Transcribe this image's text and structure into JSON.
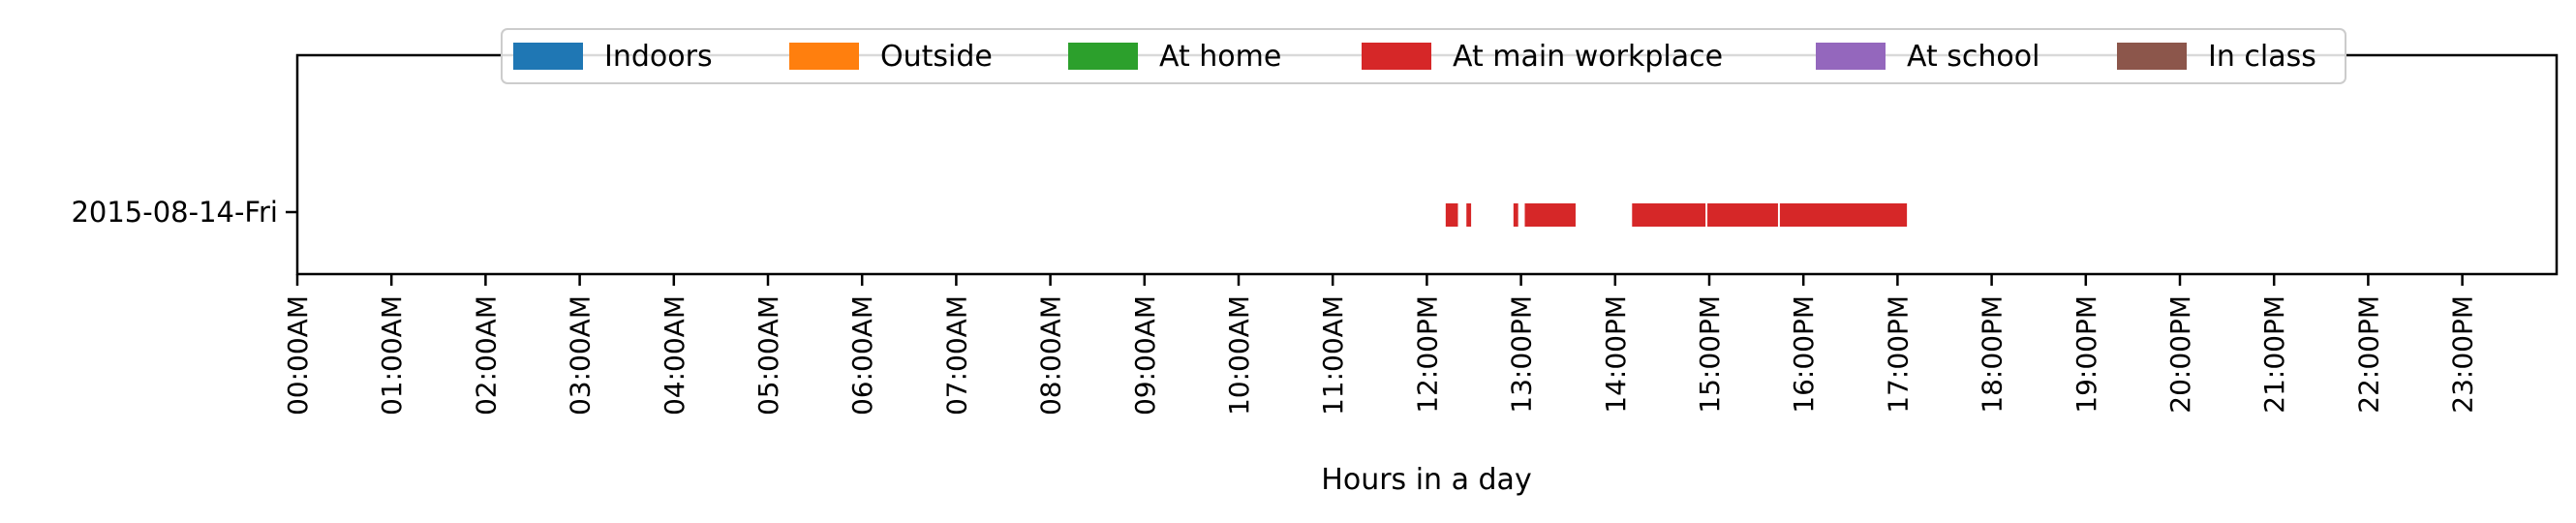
{
  "chart_data": {
    "type": "timeline",
    "title": "",
    "xlabel": "Hours in a day",
    "ylabel": "",
    "xlim": [
      0,
      24
    ],
    "y_categories": [
      "2015-08-14-Fri"
    ],
    "x_ticks": [
      "00:00AM",
      "01:00AM",
      "02:00AM",
      "03:00AM",
      "04:00AM",
      "05:00AM",
      "06:00AM",
      "07:00AM",
      "08:00AM",
      "09:00AM",
      "10:00AM",
      "11:00AM",
      "12:00PM",
      "13:00PM",
      "14:00PM",
      "15:00PM",
      "16:00PM",
      "17:00PM",
      "18:00PM",
      "19:00PM",
      "20:00PM",
      "21:00PM",
      "22:00PM",
      "23:00PM"
    ],
    "grid": false,
    "legend_position": "top-center",
    "legend": [
      {
        "name": "Indoors",
        "color": "#1f77b4"
      },
      {
        "name": "Outside",
        "color": "#ff7f0e"
      },
      {
        "name": "At home",
        "color": "#2ca02c"
      },
      {
        "name": "At main workplace",
        "color": "#d62728"
      },
      {
        "name": "At school",
        "color": "#9467bd"
      },
      {
        "name": "In class",
        "color": "#8c564b"
      }
    ],
    "series": [
      {
        "name": "At main workplace",
        "row": "2015-08-14-Fri",
        "intervals": [
          [
            12.2,
            12.33
          ],
          [
            12.42,
            12.47
          ],
          [
            12.92,
            12.97
          ],
          [
            13.04,
            13.58
          ],
          [
            14.18,
            14.96
          ],
          [
            14.98,
            15.73
          ],
          [
            15.75,
            17.1
          ]
        ]
      }
    ]
  }
}
